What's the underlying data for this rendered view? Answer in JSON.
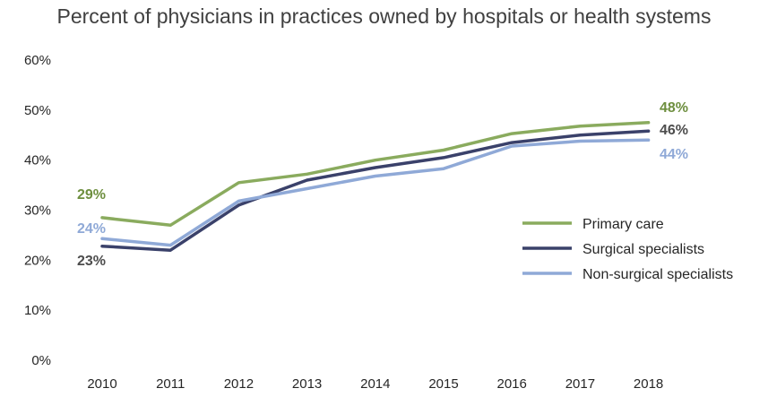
{
  "chart_data": {
    "type": "line",
    "title": "Percent of physicians in practices owned by hospitals or health systems",
    "xlabel": "",
    "ylabel": "",
    "x": [
      "2010",
      "2011",
      "2012",
      "2013",
      "2014",
      "2015",
      "2016",
      "2017",
      "2018"
    ],
    "ylim": [
      0,
      60
    ],
    "yticks": [
      "0%",
      "10%",
      "20%",
      "30%",
      "40%",
      "50%",
      "60%"
    ],
    "grid": false,
    "legend_position": "right",
    "series": [
      {
        "name": "Primary care",
        "color": "#8aab5e",
        "values": [
          28.5,
          27,
          35.5,
          37.2,
          40,
          42,
          45.3,
          46.8,
          47.5
        ],
        "start_label": "29%",
        "end_label": "48%",
        "label_color": "#6e8f3f"
      },
      {
        "name": "Surgical specialists",
        "color": "#3a416a",
        "values": [
          22.8,
          22,
          31,
          36,
          38.5,
          40.5,
          43.5,
          45,
          45.8
        ],
        "start_label": "23%",
        "end_label": "46%",
        "label_color": "#4d4d4d"
      },
      {
        "name": "Non-surgical specialists",
        "color": "#8fa9d7",
        "values": [
          24.3,
          23,
          31.8,
          34.3,
          36.8,
          38.3,
          42.8,
          43.8,
          44
        ],
        "start_label": "24%",
        "end_label": "44%",
        "label_color": "#8fa9d7"
      }
    ]
  }
}
